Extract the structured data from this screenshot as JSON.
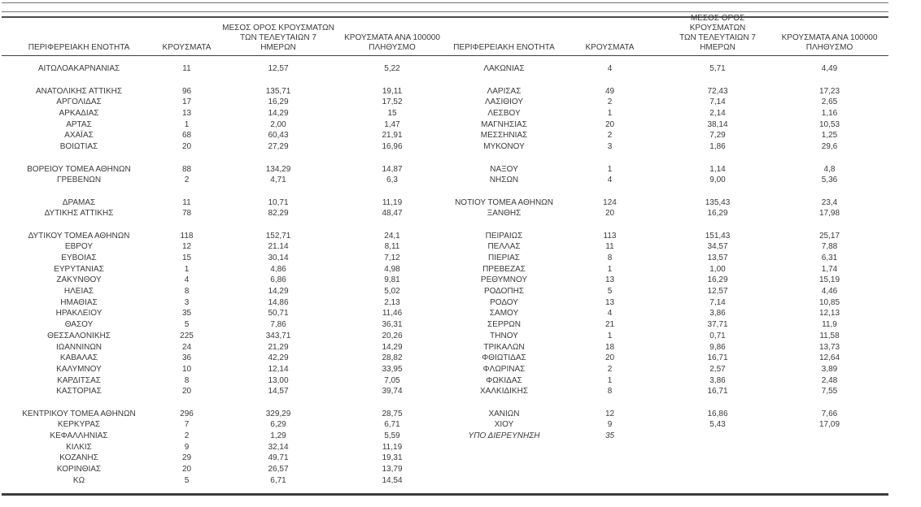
{
  "headers": {
    "region": "ΠΕΡΙΦΕΡΕΙΑΚΗ ΕΝΟΤΗΤΑ",
    "cases": "ΚΡΟΥΣΜΑΤΑ",
    "avg7": "ΜΕΣΟΣ ΟΡΟΣ ΚΡΟΥΣΜΑΤΩΝ\nΤΩΝ ΤΕΛΕΥΤΑΙΩΝ 7\nΗΜΕΡΩΝ",
    "per100k": "ΚΡΟΥΣΜΑΤΑ ΑΝΑ 100000\nΠΛΗΘΥΣΜΟ"
  },
  "left_rows": [
    {
      "region": "ΑΙΤΩΛΟΑΚΑΡΝΑΝΙΑΣ",
      "cases": "11",
      "avg7": "12,57",
      "per100k": "5,22"
    },
    {
      "region": "",
      "cases": "",
      "avg7": "",
      "per100k": ""
    },
    {
      "region": "ΑΝΑΤΟΛΙΚΗΣ ΑΤΤΙΚΗΣ",
      "cases": "96",
      "avg7": "135,71",
      "per100k": "19,11"
    },
    {
      "region": "ΑΡΓΟΛΙΔΑΣ",
      "cases": "17",
      "avg7": "16,29",
      "per100k": "17,52"
    },
    {
      "region": "ΑΡΚΑΔΙΑΣ",
      "cases": "13",
      "avg7": "14,29",
      "per100k": "15"
    },
    {
      "region": "ΑΡΤΑΣ",
      "cases": "1",
      "avg7": "2,00",
      "per100k": "1,47"
    },
    {
      "region": "ΑΧΑΪΑΣ",
      "cases": "68",
      "avg7": "60,43",
      "per100k": "21,91"
    },
    {
      "region": "ΒΟΙΩΤΙΑΣ",
      "cases": "20",
      "avg7": "27,29",
      "per100k": "16,96"
    },
    {
      "region": "",
      "cases": "",
      "avg7": "",
      "per100k": ""
    },
    {
      "region": "ΒΟΡΕΙΟΥ ΤΟΜΕΑ ΑΘΗΝΩΝ",
      "cases": "88",
      "avg7": "134,29",
      "per100k": "14,87"
    },
    {
      "region": "ΓΡΕΒΕΝΩΝ",
      "cases": "2",
      "avg7": "4,71",
      "per100k": "6,3"
    },
    {
      "region": "",
      "cases": "",
      "avg7": "",
      "per100k": ""
    },
    {
      "region": "ΔΡΑΜΑΣ",
      "cases": "11",
      "avg7": "10,71",
      "per100k": "11,19"
    },
    {
      "region": "ΔΥΤΙΚΗΣ ΑΤΤΙΚΗΣ",
      "cases": "78",
      "avg7": "82,29",
      "per100k": "48,47"
    },
    {
      "region": "",
      "cases": "",
      "avg7": "",
      "per100k": ""
    },
    {
      "region": "ΔΥΤΙΚΟΥ ΤΟΜΕΑ ΑΘΗΝΩΝ",
      "cases": "118",
      "avg7": "152,71",
      "per100k": "24,1"
    },
    {
      "region": "ΕΒΡΟΥ",
      "cases": "12",
      "avg7": "21,14",
      "per100k": "8,11"
    },
    {
      "region": "ΕΥΒΟΙΑΣ",
      "cases": "15",
      "avg7": "30,14",
      "per100k": "7,12"
    },
    {
      "region": "ΕΥΡΥΤΑΝΙΑΣ",
      "cases": "1",
      "avg7": "4,86",
      "per100k": "4,98"
    },
    {
      "region": "ΖΑΚΥΝΘΟΥ",
      "cases": "4",
      "avg7": "6,86",
      "per100k": "9,81"
    },
    {
      "region": "ΗΛΕΙΑΣ",
      "cases": "8",
      "avg7": "14,29",
      "per100k": "5,02"
    },
    {
      "region": "ΗΜΑΘΙΑΣ",
      "cases": "3",
      "avg7": "14,86",
      "per100k": "2,13"
    },
    {
      "region": "ΗΡΑΚΛΕΙΟΥ",
      "cases": "35",
      "avg7": "50,71",
      "per100k": "11,46"
    },
    {
      "region": "ΘΑΣΟΥ",
      "cases": "5",
      "avg7": "7,86",
      "per100k": "36,31"
    },
    {
      "region": "ΘΕΣΣΑΛΟΝΙΚΗΣ",
      "cases": "225",
      "avg7": "343,71",
      "per100k": "20,26"
    },
    {
      "region": "ΙΩΑΝΝΙΝΩΝ",
      "cases": "24",
      "avg7": "21,29",
      "per100k": "14,29"
    },
    {
      "region": "ΚΑΒΑΛΑΣ",
      "cases": "36",
      "avg7": "42,29",
      "per100k": "28,82"
    },
    {
      "region": "ΚΑΛΥΜΝΟΥ",
      "cases": "10",
      "avg7": "12,14",
      "per100k": "33,95"
    },
    {
      "region": "ΚΑΡΔΙΤΣΑΣ",
      "cases": "8",
      "avg7": "13,00",
      "per100k": "7,05"
    },
    {
      "region": "ΚΑΣΤΟΡΙΑΣ",
      "cases": "20",
      "avg7": "14,57",
      "per100k": "39,74"
    },
    {
      "region": "",
      "cases": "",
      "avg7": "",
      "per100k": ""
    },
    {
      "region": "ΚΕΝΤΡΙΚΟΥ ΤΟΜΕΑ ΑΘΗΝΩΝ",
      "cases": "296",
      "avg7": "329,29",
      "per100k": "28,75"
    },
    {
      "region": "ΚΕΡΚΥΡΑΣ",
      "cases": "7",
      "avg7": "6,29",
      "per100k": "6,71"
    },
    {
      "region": "ΚΕΦΑΛΛΗΝΙΑΣ",
      "cases": "2",
      "avg7": "1,29",
      "per100k": "5,59"
    },
    {
      "region": "ΚΙΛΚΙΣ",
      "cases": "9",
      "avg7": "32,14",
      "per100k": "11,19"
    },
    {
      "region": "ΚΟΖΑΝΗΣ",
      "cases": "29",
      "avg7": "49,71",
      "per100k": "19,31"
    },
    {
      "region": "ΚΟΡΙΝΘΙΑΣ",
      "cases": "20",
      "avg7": "26,57",
      "per100k": "13,79"
    },
    {
      "region": "ΚΩ",
      "cases": "5",
      "avg7": "6,71",
      "per100k": "14,54"
    }
  ],
  "right_rows": [
    {
      "region": "ΛΑΚΩΝΙΑΣ",
      "cases": "4",
      "avg7": "5,71",
      "per100k": "4,49"
    },
    {
      "region": "",
      "cases": "",
      "avg7": "",
      "per100k": ""
    },
    {
      "region": "ΛΑΡΙΣΑΣ",
      "cases": "49",
      "avg7": "72,43",
      "per100k": "17,23"
    },
    {
      "region": "ΛΑΣΙΘΙΟΥ",
      "cases": "2",
      "avg7": "7,14",
      "per100k": "2,65"
    },
    {
      "region": "ΛΕΣΒΟΥ",
      "cases": "1",
      "avg7": "2,14",
      "per100k": "1,16"
    },
    {
      "region": "ΜΑΓΝΗΣΙΑΣ",
      "cases": "20",
      "avg7": "38,14",
      "per100k": "10,53"
    },
    {
      "region": "ΜΕΣΣΗΝΙΑΣ",
      "cases": "2",
      "avg7": "7,29",
      "per100k": "1,25"
    },
    {
      "region": "ΜΥΚΟΝΟΥ",
      "cases": "3",
      "avg7": "1,86",
      "per100k": "29,6"
    },
    {
      "region": "",
      "cases": "",
      "avg7": "",
      "per100k": ""
    },
    {
      "region": "ΝΑΞΟΥ",
      "cases": "1",
      "avg7": "1,14",
      "per100k": "4,8"
    },
    {
      "region": "ΝΗΣΩΝ",
      "cases": "4",
      "avg7": "9,00",
      "per100k": "5,36"
    },
    {
      "region": "",
      "cases": "",
      "avg7": "",
      "per100k": ""
    },
    {
      "region": "ΝΟΤΙΟΥ ΤΟΜΕΑ ΑΘΗΝΩΝ",
      "cases": "124",
      "avg7": "135,43",
      "per100k": "23,4"
    },
    {
      "region": "ΞΑΝΘΗΣ",
      "cases": "20",
      "avg7": "16,29",
      "per100k": "17,98"
    },
    {
      "region": "",
      "cases": "",
      "avg7": "",
      "per100k": ""
    },
    {
      "region": "ΠΕΙΡΑΙΩΣ",
      "cases": "113",
      "avg7": "151,43",
      "per100k": "25,17"
    },
    {
      "region": "ΠΕΛΛΑΣ",
      "cases": "11",
      "avg7": "34,57",
      "per100k": "7,88"
    },
    {
      "region": "ΠΙΕΡΙΑΣ",
      "cases": "8",
      "avg7": "13,57",
      "per100k": "6,31"
    },
    {
      "region": "ΠΡΕΒΕΖΑΣ",
      "cases": "1",
      "avg7": "1,00",
      "per100k": "1,74"
    },
    {
      "region": "ΡΕΘΥΜΝΟΥ",
      "cases": "13",
      "avg7": "16,29",
      "per100k": "15,19"
    },
    {
      "region": "ΡΟΔΟΠΗΣ",
      "cases": "5",
      "avg7": "12,57",
      "per100k": "4,46"
    },
    {
      "region": "ΡΟΔΟΥ",
      "cases": "13",
      "avg7": "7,14",
      "per100k": "10,85"
    },
    {
      "region": "ΣΑΜΟΥ",
      "cases": "4",
      "avg7": "3,86",
      "per100k": "12,13"
    },
    {
      "region": "ΣΕΡΡΩΝ",
      "cases": "21",
      "avg7": "37,71",
      "per100k": "11,9"
    },
    {
      "region": "ΤΗΝΟΥ",
      "cases": "1",
      "avg7": "0,71",
      "per100k": "11,58"
    },
    {
      "region": "ΤΡΙΚΑΛΩΝ",
      "cases": "18",
      "avg7": "9,86",
      "per100k": "13,73"
    },
    {
      "region": "ΦΘΙΩΤΙΔΑΣ",
      "cases": "20",
      "avg7": "16,71",
      "per100k": "12,64"
    },
    {
      "region": "ΦΛΩΡΙΝΑΣ",
      "cases": "2",
      "avg7": "2,57",
      "per100k": "3,89"
    },
    {
      "region": "ΦΩΚΙΔΑΣ",
      "cases": "1",
      "avg7": "3,86",
      "per100k": "2,48"
    },
    {
      "region": "ΧΑΛΚΙΔΙΚΗΣ",
      "cases": "8",
      "avg7": "16,71",
      "per100k": "7,55"
    },
    {
      "region": "",
      "cases": "",
      "avg7": "",
      "per100k": ""
    },
    {
      "region": "ΧΑΝΙΩΝ",
      "cases": "12",
      "avg7": "16,86",
      "per100k": "7,66"
    },
    {
      "region": "ΧΙΟΥ",
      "cases": "9",
      "avg7": "5,43",
      "per100k": "17,09"
    },
    {
      "region": "ΥΠΟ ΔΙΕΡΕΥΝΗΣΗ",
      "cases": "35",
      "avg7": "",
      "per100k": "",
      "italic": true
    },
    {
      "region": "",
      "cases": "",
      "avg7": "",
      "per100k": ""
    },
    {
      "region": "",
      "cases": "",
      "avg7": "",
      "per100k": ""
    },
    {
      "region": "",
      "cases": "",
      "avg7": "",
      "per100k": ""
    },
    {
      "region": "",
      "cases": "",
      "avg7": "",
      "per100k": ""
    }
  ]
}
